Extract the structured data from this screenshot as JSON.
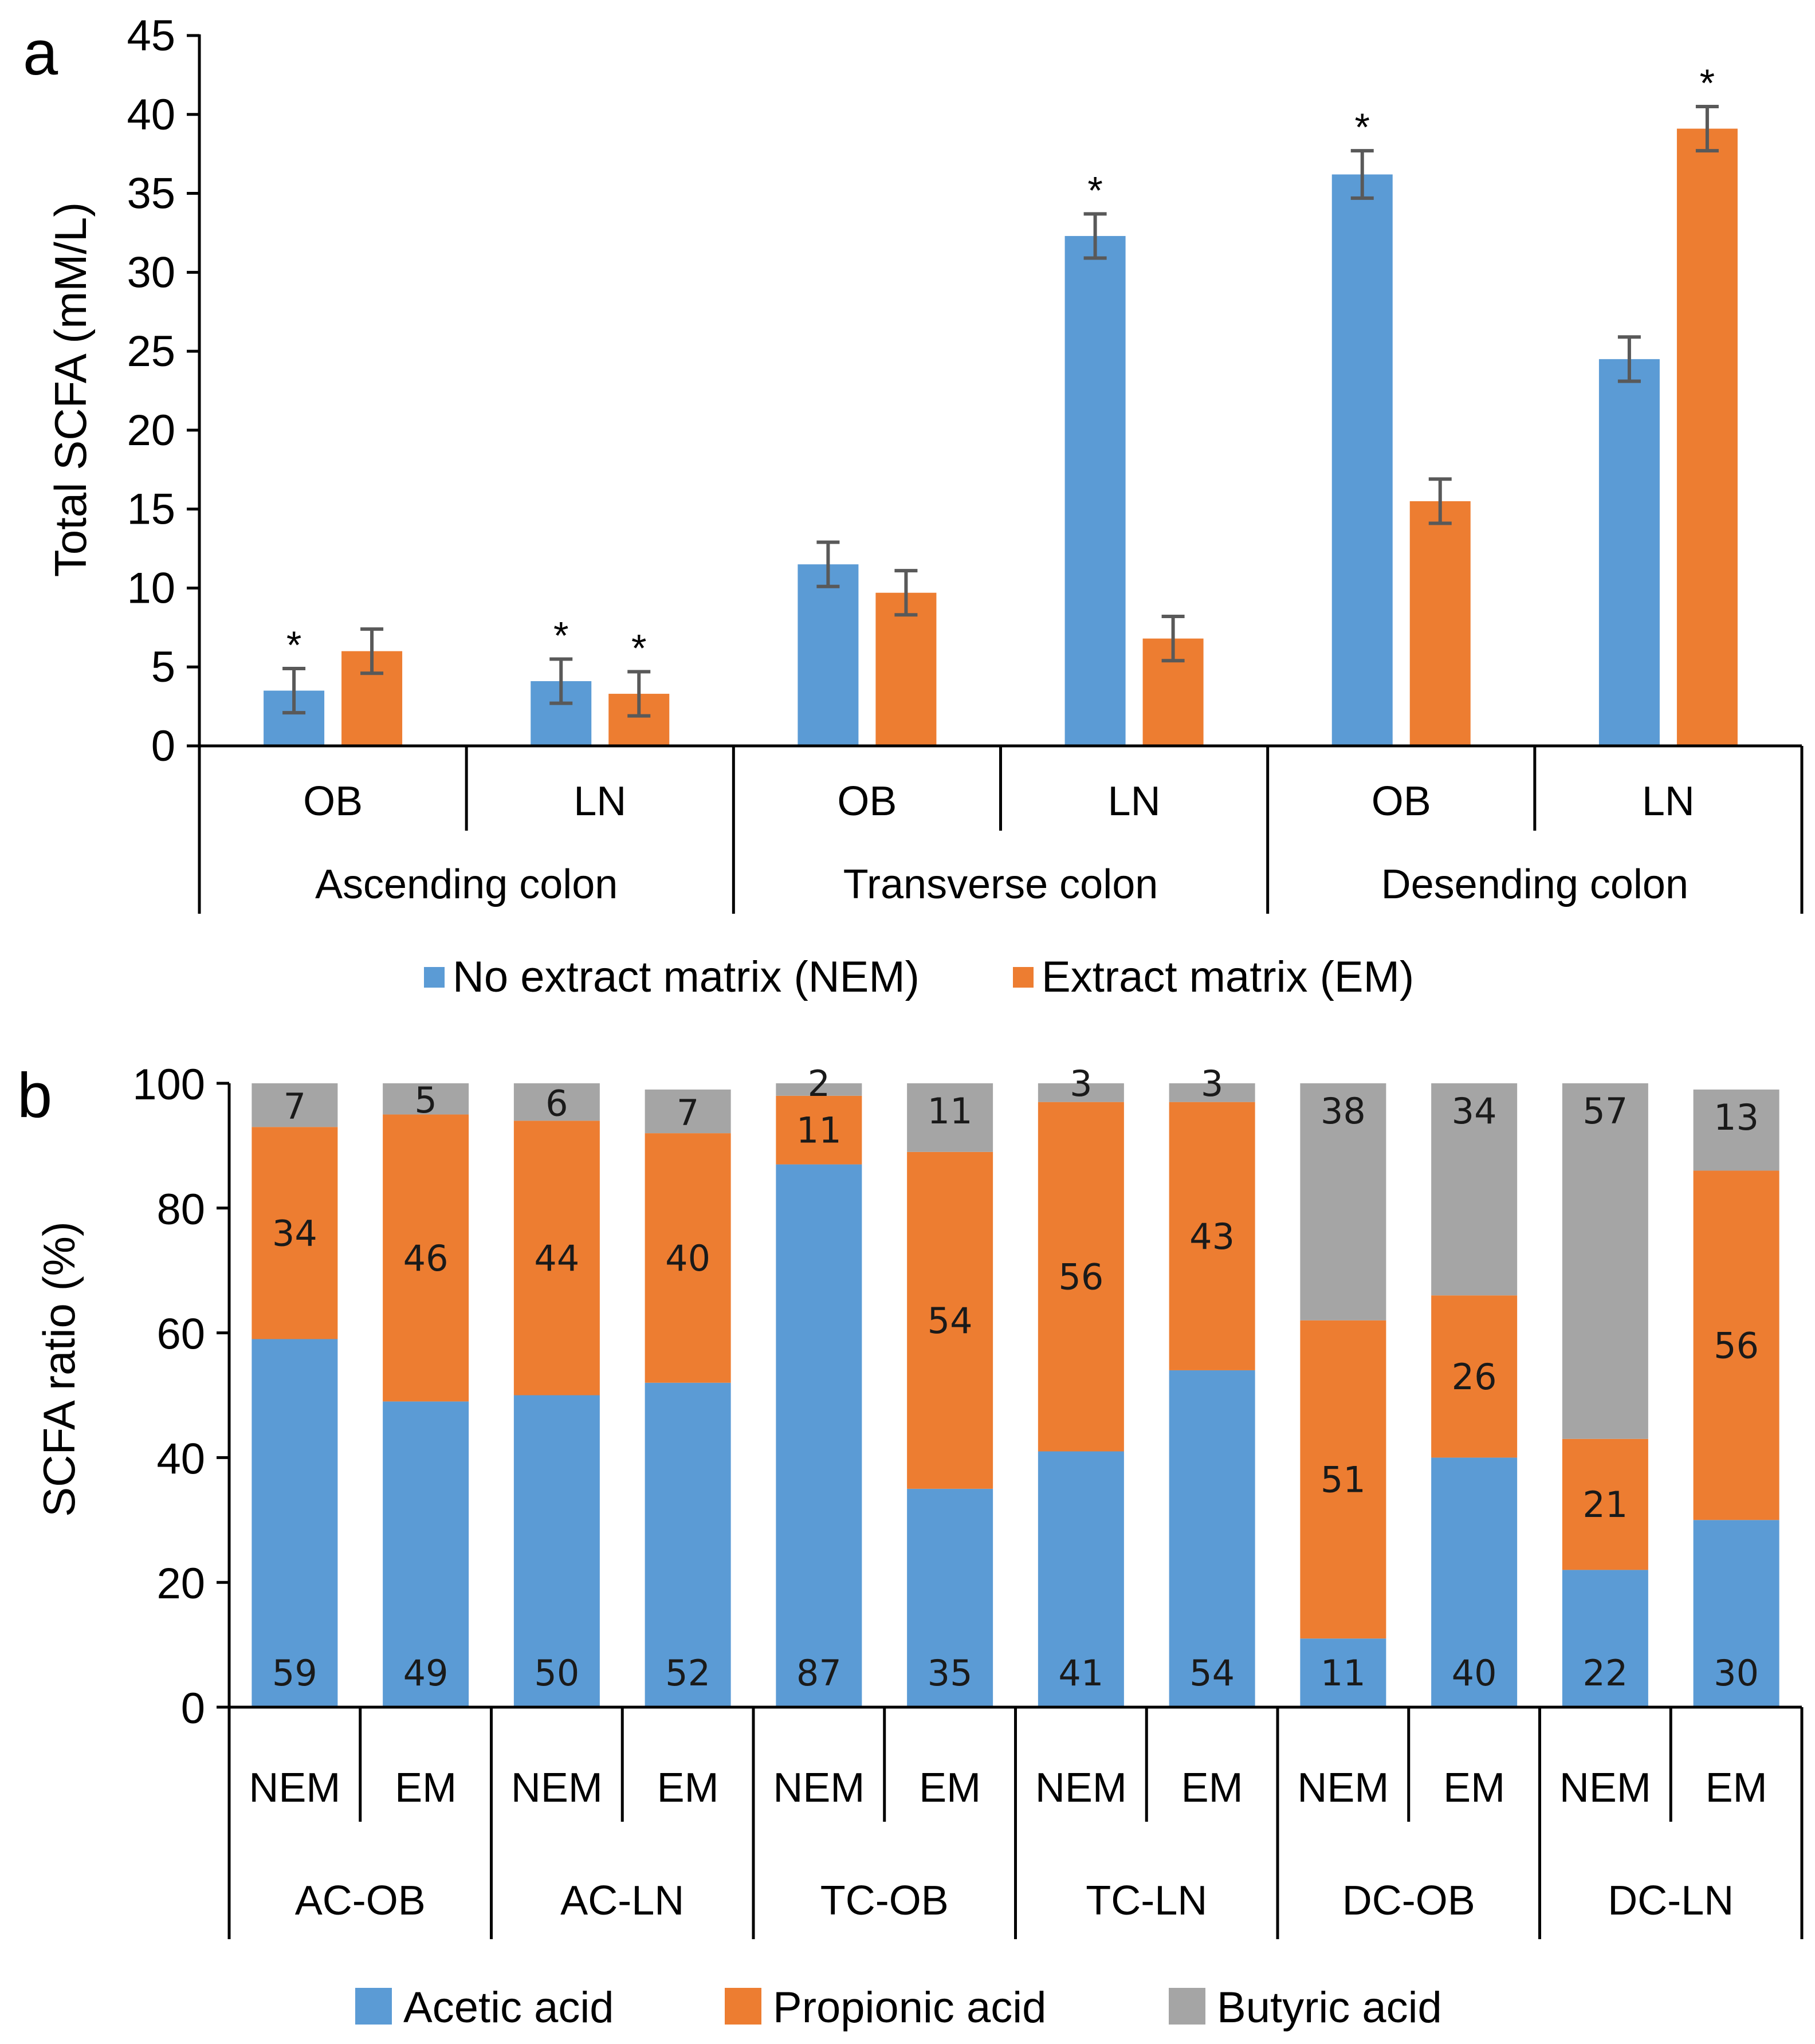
{
  "colors": {
    "acetic": "#5B9BD5",
    "propionic": "#ED7D31",
    "butyric": "#A5A5A5",
    "nem": "#5B9BD5",
    "em": "#ED7D31"
  },
  "chart_data": [
    {
      "type": "bar",
      "panel": "a",
      "ylabel": "Total SCFA (mM/L)",
      "ylim": [
        0,
        45
      ],
      "yticks": [
        "0",
        "5",
        "10",
        "15",
        "20",
        "25",
        "30",
        "35",
        "40",
        "45"
      ],
      "categories": [
        "OB",
        "LN",
        "OB",
        "LN",
        "OB",
        "LN"
      ],
      "groups": [
        "Ascending colon",
        "Transverse colon",
        "Desending colon"
      ],
      "series": [
        {
          "name": "No extract matrix (NEM)",
          "values": [
            3.5,
            4.1,
            11.5,
            32.3,
            36.2,
            24.5
          ],
          "errors": [
            1.4,
            1.4,
            1.4,
            1.4,
            1.5,
            1.4
          ]
        },
        {
          "name": "Extract matrix (EM)",
          "values": [
            6.0,
            3.3,
            9.7,
            6.8,
            15.5,
            39.1
          ],
          "errors": [
            1.4,
            1.4,
            1.4,
            1.4,
            1.4,
            1.4
          ]
        }
      ],
      "significance": [
        {
          "category_index": 0,
          "series_index": 0,
          "mark": "*"
        },
        {
          "category_index": 1,
          "series_index": 0,
          "mark": "*"
        },
        {
          "category_index": 1,
          "series_index": 1,
          "mark": "*"
        },
        {
          "category_index": 3,
          "series_index": 0,
          "mark": "*"
        },
        {
          "category_index": 4,
          "series_index": 0,
          "mark": "*"
        },
        {
          "category_index": 5,
          "series_index": 1,
          "mark": "*"
        }
      ],
      "legend": [
        "No extract matrix (NEM)",
        "Extract matrix (EM)"
      ]
    },
    {
      "type": "stacked_bar",
      "panel": "b",
      "ylabel": "SCFA ratio (%)",
      "ylim": [
        0,
        100
      ],
      "yticks": [
        "0",
        "20",
        "40",
        "60",
        "80",
        "100"
      ],
      "categories": [
        "NEM",
        "EM",
        "NEM",
        "EM",
        "NEM",
        "EM",
        "NEM",
        "EM",
        "NEM",
        "EM",
        "NEM",
        "EM"
      ],
      "groups": [
        "AC-OB",
        "AC-LN",
        "TC-OB",
        "TC-LN",
        "DC-OB",
        "DC-LN"
      ],
      "series": [
        {
          "name": "Acetic acid",
          "values": [
            59,
            49,
            50,
            52,
            87,
            35,
            41,
            54,
            11,
            40,
            22,
            30
          ]
        },
        {
          "name": "Propionic acid",
          "values": [
            34,
            46,
            44,
            40,
            11,
            54,
            56,
            43,
            51,
            26,
            21,
            56
          ]
        },
        {
          "name": "Butyric acid",
          "values": [
            7,
            5,
            6,
            7,
            2,
            11,
            3,
            3,
            38,
            34,
            57,
            13
          ]
        }
      ],
      "legend": [
        "Acetic acid",
        "Propionic acid",
        "Butyric acid"
      ]
    }
  ]
}
